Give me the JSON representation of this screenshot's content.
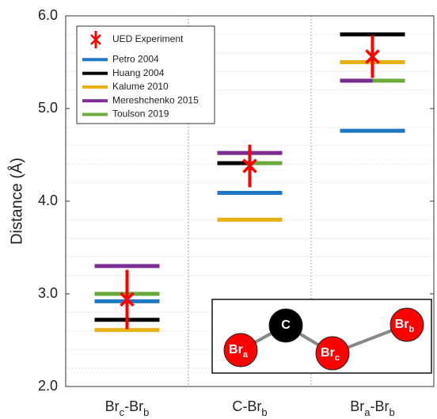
{
  "chart_data": {
    "type": "range_ticks",
    "y_label": "Distance (Å)",
    "categories": [
      [
        "Br",
        "c",
        "-Br",
        "b"
      ],
      [
        "C-Br",
        "b"
      ],
      [
        "Br",
        "a",
        "-Br",
        "b"
      ]
    ],
    "series": [
      {
        "name": "UED Experiment",
        "color": "#ff0000",
        "values": [
          2.94,
          4.38,
          5.56
        ],
        "errors": [
          0.32,
          0.23,
          0.23
        ]
      },
      {
        "name": "Petro 2004",
        "color": "#1f77c4",
        "values": [
          2.92,
          4.09,
          4.76
        ]
      },
      {
        "name": "Huang 2004",
        "color": "#000000",
        "values": [
          2.72,
          4.41,
          5.8
        ]
      },
      {
        "name": "Kalume 2010",
        "color": "#e6b115",
        "values": [
          2.61,
          3.8,
          5.5
        ]
      },
      {
        "name": "Mereshchenko 2015",
        "color": "#7b2d91",
        "values": [
          3.3,
          4.52,
          5.3
        ]
      },
      {
        "name": "Toulson 2019",
        "color": "#6aaa3a",
        "values": [
          3.0,
          4.41,
          5.3
        ]
      }
    ],
    "ylim": [
      2.0,
      6.0
    ],
    "yticks": [
      {
        "value": 2,
        "label": "2.0"
      },
      {
        "value": 3,
        "label": "3.0"
      },
      {
        "value": 4,
        "label": "4.0"
      },
      {
        "value": 5,
        "label": "5.0"
      },
      {
        "value": 6,
        "label": "6.0"
      }
    ],
    "yminorticks": [
      2.2,
      2.4,
      2.6,
      2.8,
      3.2,
      3.4,
      3.6,
      3.8,
      4.2,
      4.4,
      4.6,
      4.8,
      5.2,
      5.4,
      5.6,
      5.8
    ],
    "grid": true,
    "legend": "upper-left"
  },
  "inset": {
    "atoms": [
      [
        "C"
      ],
      [
        "Br",
        "a"
      ],
      [
        "Br",
        "c"
      ],
      [
        "Br",
        "b"
      ]
    ]
  }
}
